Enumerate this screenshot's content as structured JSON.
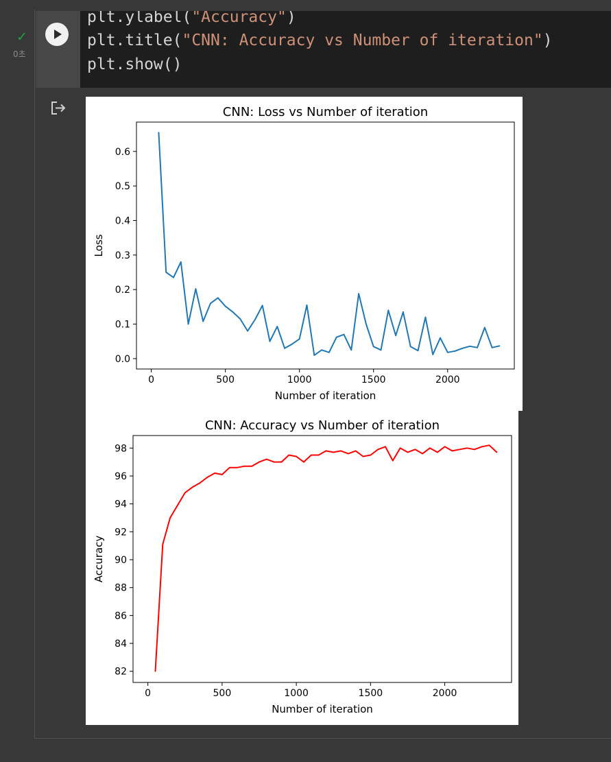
{
  "cell": {
    "status_check": "✓",
    "exec_time": "0초",
    "code_lines": [
      {
        "pre": "plt.ylabel(",
        "str": "\"Accuracy\"",
        "post": ")"
      },
      {
        "pre": "plt.title(",
        "str": "\"CNN: Accuracy vs Number of iteration\"",
        "post": ")"
      },
      {
        "pre": "plt.show()",
        "str": "",
        "post": ""
      }
    ]
  },
  "colors": {
    "loss_line": "#1f77b4",
    "accuracy_line": "#ff0000",
    "background": "#383838",
    "code_background": "#1e1e1e",
    "string": "#ce9178"
  },
  "icons": {
    "run": "play-icon",
    "status": "check-icon",
    "output": "output-icon"
  },
  "chart_data": [
    {
      "type": "line",
      "title": "CNN: Loss vs Number of iteration",
      "xlabel": "Number of iteration",
      "ylabel": "Loss",
      "xlim": [
        -100,
        2450
      ],
      "ylim": [
        -0.03,
        0.685
      ],
      "xticks": [
        0,
        500,
        1000,
        1500,
        2000
      ],
      "yticks": [
        0.0,
        0.1,
        0.2,
        0.3,
        0.4,
        0.5,
        0.6
      ],
      "ytick_labels": [
        "0.0",
        "0.1",
        "0.2",
        "0.3",
        "0.4",
        "0.5",
        "0.6"
      ],
      "grid": false,
      "series": [
        {
          "x": [
            50,
            100,
            150,
            200,
            250,
            300,
            350,
            400,
            450,
            500,
            550,
            600,
            650,
            700,
            750,
            800,
            850,
            900,
            950,
            1000,
            1050,
            1100,
            1150,
            1200,
            1250,
            1300,
            1350,
            1400,
            1450,
            1500,
            1550,
            1600,
            1650,
            1700,
            1750,
            1800,
            1850,
            1900,
            1950,
            2000,
            2050,
            2100,
            2150,
            2200,
            2250,
            2300,
            2350
          ],
          "y": [
            0.655,
            0.25,
            0.235,
            0.28,
            0.1,
            0.202,
            0.108,
            0.16,
            0.176,
            0.152,
            0.135,
            0.115,
            0.08,
            0.113,
            0.154,
            0.05,
            0.093,
            0.03,
            0.042,
            0.057,
            0.155,
            0.01,
            0.025,
            0.018,
            0.062,
            0.07,
            0.025,
            0.188,
            0.1,
            0.035,
            0.025,
            0.14,
            0.067,
            0.135,
            0.035,
            0.023,
            0.12,
            0.012,
            0.06,
            0.018,
            0.022,
            0.03,
            0.036,
            0.032,
            0.09,
            0.032,
            0.037
          ]
        }
      ]
    },
    {
      "type": "line",
      "title": "CNN: Accuracy vs Number of iteration",
      "xlabel": "Number of iteration",
      "ylabel": "Accuracy",
      "xlim": [
        -100,
        2450
      ],
      "ylim": [
        81.2,
        98.9
      ],
      "xticks": [
        0,
        500,
        1000,
        1500,
        2000
      ],
      "yticks": [
        82,
        84,
        86,
        88,
        90,
        92,
        94,
        96,
        98
      ],
      "ytick_labels": [
        "82",
        "84",
        "86",
        "88",
        "90",
        "92",
        "94",
        "96",
        "98"
      ],
      "grid": false,
      "series": [
        {
          "x": [
            50,
            100,
            150,
            200,
            250,
            300,
            350,
            400,
            450,
            500,
            550,
            600,
            650,
            700,
            750,
            800,
            850,
            900,
            950,
            1000,
            1050,
            1100,
            1150,
            1200,
            1250,
            1300,
            1350,
            1400,
            1450,
            1500,
            1550,
            1600,
            1650,
            1700,
            1750,
            1800,
            1850,
            1900,
            1950,
            2000,
            2050,
            2100,
            2150,
            2200,
            2250,
            2300,
            2350
          ],
          "y": [
            82.0,
            91.1,
            93.0,
            93.9,
            94.8,
            95.2,
            95.5,
            95.9,
            96.2,
            96.1,
            96.6,
            96.6,
            96.7,
            96.7,
            97.0,
            97.2,
            97.0,
            97.0,
            97.5,
            97.4,
            97.0,
            97.5,
            97.5,
            97.8,
            97.7,
            97.8,
            97.6,
            97.8,
            97.4,
            97.5,
            97.9,
            98.1,
            97.1,
            98.0,
            97.7,
            97.9,
            97.6,
            98.0,
            97.7,
            98.1,
            97.8,
            97.9,
            98.0,
            97.9,
            98.1,
            98.2,
            97.7
          ]
        }
      ]
    }
  ]
}
